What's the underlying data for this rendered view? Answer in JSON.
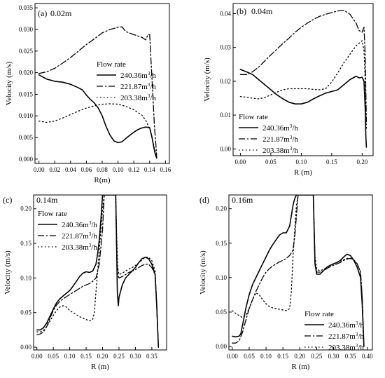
{
  "legend_title": "Flow rate",
  "series_styles": [
    {
      "name": "240.36m³/h",
      "dash": "",
      "width": 1.6
    },
    {
      "name": "221.87m³/h",
      "dash": "9 3 2 3",
      "width": 1.3
    },
    {
      "name": "203.38m³/h",
      "dash": "1.5 3.5",
      "width": 1.3
    }
  ],
  "chart_data": [
    {
      "type": "line",
      "panel_label": "(a)",
      "location_label": "0.02m",
      "xlabel": "R(m)",
      "ylabel": "Velocity (m/s)",
      "xlim": [
        -0.005,
        0.165
      ],
      "ylim": [
        -0.001,
        0.036
      ],
      "xticks": [
        "0.00",
        "0.02",
        "0.04",
        "0.06",
        "0.08",
        "0.10",
        "0.12",
        "0.14",
        "0.16"
      ],
      "yticks": [
        "0.000",
        "0.005",
        "0.010",
        "0.015",
        "0.020",
        "0.025",
        "0.030",
        "0.035"
      ],
      "legend_position": "middle",
      "series": [
        {
          "name": "240.36m³/h",
          "x": [
            0,
            0.005,
            0.01,
            0.02,
            0.03,
            0.04,
            0.05,
            0.055,
            0.06,
            0.065,
            0.07,
            0.075,
            0.08,
            0.085,
            0.09,
            0.095,
            0.1,
            0.105,
            0.11,
            0.115,
            0.12,
            0.125,
            0.13,
            0.135,
            0.14,
            0.143,
            0.145,
            0.147,
            0.149
          ],
          "y": [
            0.0195,
            0.019,
            0.0185,
            0.018,
            0.0178,
            0.0173,
            0.0165,
            0.016,
            0.0148,
            0.0138,
            0.013,
            0.0118,
            0.01,
            0.0075,
            0.0055,
            0.0042,
            0.0038,
            0.004,
            0.0048,
            0.0055,
            0.0062,
            0.0068,
            0.0072,
            0.0074,
            0.0073,
            0.005,
            0.003,
            0.0012,
            0.0002
          ]
        },
        {
          "name": "221.87m³/h",
          "x": [
            0,
            0.01,
            0.02,
            0.03,
            0.04,
            0.05,
            0.06,
            0.07,
            0.08,
            0.09,
            0.1,
            0.105,
            0.11,
            0.12,
            0.13,
            0.135,
            0.138,
            0.14,
            0.142,
            0.144,
            0.146,
            0.148,
            0.149
          ],
          "y": [
            0.0198,
            0.0202,
            0.021,
            0.0222,
            0.0235,
            0.025,
            0.0265,
            0.0278,
            0.0292,
            0.03,
            0.0305,
            0.0306,
            0.0295,
            0.0288,
            0.0282,
            0.0276,
            0.0288,
            0.0288,
            0.022,
            0.015,
            0.008,
            0.003,
            0.0005
          ]
        },
        {
          "name": "203.38m³/h",
          "x": [
            0,
            0.01,
            0.02,
            0.03,
            0.04,
            0.05,
            0.06,
            0.07,
            0.08,
            0.09,
            0.1,
            0.11,
            0.12,
            0.13,
            0.135,
            0.14,
            0.143,
            0.146,
            0.149
          ],
          "y": [
            0.0088,
            0.0085,
            0.0088,
            0.0095,
            0.0103,
            0.0111,
            0.0118,
            0.0123,
            0.0127,
            0.0128,
            0.0127,
            0.0122,
            0.0114,
            0.0102,
            0.009,
            0.007,
            0.005,
            0.0025,
            0.0003
          ]
        }
      ]
    },
    {
      "type": "line",
      "panel_label": "(b)",
      "location_label": "0.04m",
      "xlabel": "R (m)",
      "ylabel": "Velocity (m/s)",
      "xlim": [
        -0.012,
        0.218
      ],
      "ylim": [
        -0.002,
        0.043
      ],
      "xticks": [
        "0.00",
        "0.05",
        "0.10",
        "0.15",
        "0.20"
      ],
      "yticks": [
        "0.00",
        "0.01",
        "0.02",
        "0.03",
        "0.04"
      ],
      "legend_position": "lower-left",
      "series": [
        {
          "name": "240.36m³/h",
          "x": [
            0,
            0.01,
            0.02,
            0.03,
            0.04,
            0.05,
            0.06,
            0.07,
            0.08,
            0.09,
            0.1,
            0.11,
            0.12,
            0.13,
            0.14,
            0.15,
            0.155,
            0.16,
            0.17,
            0.18,
            0.19,
            0.195,
            0.2,
            0.203,
            0.205,
            0.206,
            0.207
          ],
          "y": [
            0.0235,
            0.0228,
            0.022,
            0.0205,
            0.019,
            0.0175,
            0.016,
            0.0148,
            0.0138,
            0.0133,
            0.0133,
            0.0138,
            0.0148,
            0.0157,
            0.0165,
            0.017,
            0.0172,
            0.0175,
            0.019,
            0.0205,
            0.0215,
            0.021,
            0.0212,
            0.02,
            0.012,
            0.004,
            0.0005
          ]
        },
        {
          "name": "221.87m³/h",
          "x": [
            0,
            0.01,
            0.02,
            0.03,
            0.04,
            0.05,
            0.06,
            0.07,
            0.08,
            0.09,
            0.1,
            0.11,
            0.12,
            0.13,
            0.14,
            0.15,
            0.16,
            0.17,
            0.18,
            0.19,
            0.195,
            0.2,
            0.203,
            0.205,
            0.207
          ],
          "y": [
            0.022,
            0.022,
            0.0228,
            0.0242,
            0.026,
            0.0278,
            0.0295,
            0.0312,
            0.0328,
            0.0345,
            0.036,
            0.0372,
            0.0383,
            0.0392,
            0.0398,
            0.0403,
            0.0408,
            0.041,
            0.0398,
            0.0372,
            0.035,
            0.0345,
            0.036,
            0.028,
            0.008
          ]
        },
        {
          "name": "203.38m³/h",
          "x": [
            0,
            0.01,
            0.02,
            0.03,
            0.04,
            0.05,
            0.06,
            0.07,
            0.08,
            0.09,
            0.1,
            0.11,
            0.12,
            0.13,
            0.14,
            0.15,
            0.16,
            0.17,
            0.18,
            0.19,
            0.2,
            0.203,
            0.205,
            0.207
          ],
          "y": [
            0.0155,
            0.0153,
            0.015,
            0.0148,
            0.0152,
            0.016,
            0.0168,
            0.0175,
            0.0178,
            0.0178,
            0.0178,
            0.0178,
            0.0176,
            0.0175,
            0.0178,
            0.0198,
            0.0225,
            0.0255,
            0.028,
            0.0305,
            0.032,
            0.029,
            0.02,
            0.006
          ]
        }
      ]
    },
    {
      "type": "line",
      "panel_label": "(c)",
      "location_label": "0.14m",
      "xlabel": "R (m)",
      "ylabel": "Velocity (m/s)",
      "xlim": [
        -0.01,
        0.395
      ],
      "ylim": [
        -0.004,
        0.22
      ],
      "xticks": [
        "0.00",
        "0.05",
        "0.10",
        "0.15",
        "0.20",
        "0.25",
        "0.30",
        "0.35"
      ],
      "yticks": [
        "0.00",
        "0.05",
        "0.10",
        "0.15",
        "0.20"
      ],
      "legend_position": "upper-left",
      "series": [
        {
          "name": "240.36m³/h",
          "x": [
            0,
            0.01,
            0.02,
            0.03,
            0.04,
            0.05,
            0.06,
            0.07,
            0.08,
            0.09,
            0.1,
            0.11,
            0.12,
            0.13,
            0.14,
            0.15,
            0.16,
            0.17,
            0.18,
            0.185,
            0.19,
            0.195,
            0.2,
            0.205,
            0.24,
            0.243,
            0.245,
            0.248,
            0.25,
            0.26,
            0.27,
            0.28,
            0.29,
            0.3,
            0.31,
            0.32,
            0.33,
            0.34,
            0.35,
            0.36,
            0.365,
            0.37
          ],
          "y": [
            0.025,
            0.025,
            0.028,
            0.035,
            0.045,
            0.055,
            0.064,
            0.07,
            0.074,
            0.078,
            0.082,
            0.088,
            0.095,
            0.102,
            0.107,
            0.109,
            0.108,
            0.11,
            0.12,
            0.135,
            0.155,
            0.185,
            0.22,
            0.22,
            0.22,
            0.14,
            0.08,
            0.06,
            0.072,
            0.09,
            0.1,
            0.105,
            0.11,
            0.115,
            0.122,
            0.128,
            0.13,
            0.128,
            0.12,
            0.105,
            0.06,
            0.0
          ]
        },
        {
          "name": "221.87m³/h",
          "x": [
            0,
            0.01,
            0.02,
            0.03,
            0.04,
            0.05,
            0.06,
            0.07,
            0.08,
            0.09,
            0.1,
            0.11,
            0.12,
            0.13,
            0.14,
            0.15,
            0.16,
            0.17,
            0.18,
            0.19,
            0.2,
            0.205,
            0.24,
            0.243,
            0.246,
            0.25,
            0.26,
            0.27,
            0.28,
            0.29,
            0.3,
            0.31,
            0.32,
            0.33,
            0.34,
            0.35,
            0.36,
            0.365,
            0.37
          ],
          "y": [
            0.018,
            0.019,
            0.022,
            0.03,
            0.042,
            0.053,
            0.061,
            0.066,
            0.07,
            0.073,
            0.076,
            0.079,
            0.082,
            0.085,
            0.088,
            0.09,
            0.092,
            0.095,
            0.1,
            0.12,
            0.17,
            0.22,
            0.22,
            0.14,
            0.105,
            0.1,
            0.102,
            0.105,
            0.108,
            0.11,
            0.112,
            0.115,
            0.118,
            0.12,
            0.12,
            0.115,
            0.105,
            0.06,
            0.0
          ]
        },
        {
          "name": "203.38m³/h",
          "x": [
            0,
            0.01,
            0.02,
            0.03,
            0.04,
            0.05,
            0.06,
            0.07,
            0.08,
            0.09,
            0.1,
            0.11,
            0.12,
            0.13,
            0.14,
            0.15,
            0.16,
            0.17,
            0.175,
            0.18,
            0.185,
            0.19,
            0.195,
            0.2,
            0.205,
            0.24,
            0.243,
            0.246,
            0.25,
            0.26,
            0.27,
            0.28,
            0.29,
            0.3,
            0.31,
            0.32,
            0.33,
            0.34,
            0.35,
            0.36,
            0.365,
            0.37
          ],
          "y": [
            0.022,
            0.022,
            0.024,
            0.03,
            0.038,
            0.046,
            0.053,
            0.058,
            0.06,
            0.058,
            0.053,
            0.05,
            0.047,
            0.044,
            0.042,
            0.04,
            0.038,
            0.04,
            0.05,
            0.08,
            0.11,
            0.14,
            0.17,
            0.2,
            0.22,
            0.22,
            0.16,
            0.115,
            0.105,
            0.107,
            0.11,
            0.113,
            0.115,
            0.118,
            0.122,
            0.126,
            0.13,
            0.13,
            0.125,
            0.11,
            0.06,
            0.0
          ]
        }
      ]
    },
    {
      "type": "line",
      "panel_label": "(d)",
      "location_label": "0.16m",
      "xlabel": "R (m)",
      "ylabel": "Velocity (m/s)",
      "xlim": [
        -0.01,
        0.415
      ],
      "ylim": [
        -0.005,
        0.22
      ],
      "xticks": [
        "0.00",
        "0.05",
        "0.10",
        "0.15",
        "0.20",
        "0.25",
        "0.30",
        "0.35",
        "0.40"
      ],
      "yticks": [
        "0.00",
        "0.05",
        "0.10",
        "0.15",
        "0.20"
      ],
      "legend_position": "lower-right",
      "series": [
        {
          "name": "240.36m³/h",
          "x": [
            0,
            0.01,
            0.02,
            0.025,
            0.03,
            0.04,
            0.05,
            0.06,
            0.07,
            0.08,
            0.09,
            0.1,
            0.11,
            0.12,
            0.13,
            0.14,
            0.15,
            0.16,
            0.17,
            0.175,
            0.18,
            0.185,
            0.19,
            0.195,
            0.24,
            0.245,
            0.25,
            0.26,
            0.27,
            0.28,
            0.29,
            0.3,
            0.31,
            0.32,
            0.33,
            0.34,
            0.35,
            0.36,
            0.37,
            0.38,
            0.385,
            0.39
          ],
          "y": [
            0.015,
            0.014,
            0.015,
            0.018,
            0.03,
            0.055,
            0.075,
            0.09,
            0.1,
            0.11,
            0.12,
            0.13,
            0.14,
            0.148,
            0.155,
            0.162,
            0.165,
            0.165,
            0.175,
            0.19,
            0.205,
            0.215,
            0.22,
            0.22,
            0.22,
            0.12,
            0.105,
            0.105,
            0.11,
            0.115,
            0.118,
            0.12,
            0.122,
            0.125,
            0.13,
            0.134,
            0.132,
            0.125,
            0.115,
            0.1,
            0.06,
            0.0
          ]
        },
        {
          "name": "221.87m³/h",
          "x": [
            0,
            0.01,
            0.02,
            0.03,
            0.04,
            0.05,
            0.06,
            0.07,
            0.08,
            0.09,
            0.1,
            0.11,
            0.12,
            0.13,
            0.14,
            0.15,
            0.16,
            0.17,
            0.18,
            0.185,
            0.19,
            0.195,
            0.24,
            0.245,
            0.25,
            0.26,
            0.27,
            0.28,
            0.29,
            0.3,
            0.31,
            0.32,
            0.33,
            0.34,
            0.35,
            0.36,
            0.37,
            0.38,
            0.385,
            0.39
          ],
          "y": [
            0.005,
            0.005,
            0.008,
            0.02,
            0.038,
            0.055,
            0.068,
            0.08,
            0.09,
            0.1,
            0.108,
            0.113,
            0.117,
            0.12,
            0.123,
            0.125,
            0.128,
            0.132,
            0.14,
            0.16,
            0.19,
            0.22,
            0.22,
            0.12,
            0.108,
            0.108,
            0.11,
            0.113,
            0.116,
            0.118,
            0.12,
            0.122,
            0.125,
            0.127,
            0.128,
            0.126,
            0.12,
            0.108,
            0.07,
            0.0
          ]
        },
        {
          "name": "203.38m³/h",
          "x": [
            0,
            0.01,
            0.02,
            0.03,
            0.04,
            0.05,
            0.06,
            0.07,
            0.08,
            0.09,
            0.1,
            0.11,
            0.12,
            0.13,
            0.14,
            0.15,
            0.16,
            0.17,
            0.175,
            0.18,
            0.185,
            0.19,
            0.195,
            0.24,
            0.245,
            0.25,
            0.26,
            0.27,
            0.28,
            0.29,
            0.3,
            0.31,
            0.32,
            0.33,
            0.34,
            0.35,
            0.36,
            0.37,
            0.38,
            0.385,
            0.39
          ],
          "y": [
            0.052,
            0.048,
            0.045,
            0.042,
            0.045,
            0.055,
            0.068,
            0.078,
            0.075,
            0.068,
            0.062,
            0.058,
            0.056,
            0.055,
            0.054,
            0.053,
            0.052,
            0.055,
            0.08,
            0.13,
            0.17,
            0.205,
            0.22,
            0.22,
            0.13,
            0.112,
            0.11,
            0.112,
            0.115,
            0.118,
            0.12,
            0.122,
            0.124,
            0.126,
            0.128,
            0.128,
            0.125,
            0.12,
            0.108,
            0.07,
            0.0
          ]
        }
      ]
    }
  ]
}
